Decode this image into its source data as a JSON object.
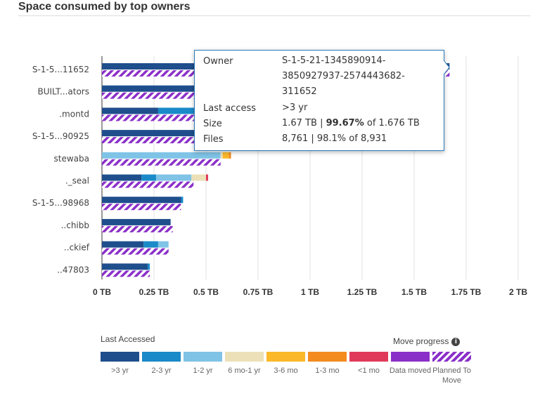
{
  "title": "Space consumed by top owners",
  "chart_data": {
    "type": "bar",
    "orientation": "horizontal",
    "x_ticks": [
      "0 TB",
      "0.25 TB",
      "0.5 TB",
      "0.75 TB",
      "1 TB",
      "1.25 TB",
      "1.5 TB",
      "1.75 TB",
      "2 TB"
    ],
    "xlim": [
      0,
      2
    ],
    "x_unit": "TB",
    "grid": true,
    "owners": [
      {
        "label": "S-1-5...11652",
        "segments": [
          1.67,
          0,
          0,
          0,
          0,
          0,
          0
        ],
        "planned": 1.67
      },
      {
        "label": "BUILT...ators",
        "segments": [
          0.66,
          0,
          0,
          0,
          0,
          0,
          0
        ],
        "planned": 0.66
      },
      {
        "label": ".montd",
        "segments": [
          0.27,
          0.38,
          0,
          0,
          0,
          0,
          0
        ],
        "planned": 0.65
      },
      {
        "label": "S-1-5...90925",
        "segments": [
          0.5,
          0,
          0,
          0,
          0,
          0,
          0
        ],
        "planned": 0.5
      },
      {
        "label": "stewaba",
        "segments": [
          0,
          0,
          0.57,
          0.01,
          0.03,
          0.01,
          0
        ],
        "planned": 0.57
      },
      {
        "label": "._seal",
        "segments": [
          0.19,
          0.07,
          0.17,
          0.07,
          0,
          0,
          0.01
        ],
        "planned": 0.44
      },
      {
        "label": "S-1-5...98968",
        "segments": [
          0.38,
          0.01,
          0,
          0,
          0,
          0,
          0
        ],
        "planned": 0.38
      },
      {
        "label": "..chibb",
        "segments": [
          0.33,
          0,
          0,
          0,
          0,
          0,
          0
        ],
        "planned": 0.34
      },
      {
        "label": "..ckief",
        "segments": [
          0.2,
          0.07,
          0.05,
          0,
          0,
          0,
          0
        ],
        "planned": 0.32
      },
      {
        "label": "..47803",
        "segments": [
          0.22,
          0.01,
          0,
          0,
          0,
          0,
          0
        ],
        "planned": 0.23
      }
    ],
    "legend": {
      "title": "Last Accessed",
      "items": [
        {
          "name": ">3 yr",
          "color": "#1f4e8c"
        },
        {
          "name": "2-3 yr",
          "color": "#1a8ac8"
        },
        {
          "name": "1-2 yr",
          "color": "#7fc3e6"
        },
        {
          "name": "6 mo-1 yr",
          "color": "#ece0b8"
        },
        {
          "name": "3-6 mo",
          "color": "#fbb829"
        },
        {
          "name": "1-3 mo",
          "color": "#f48b1f"
        },
        {
          "name": "<1 mo",
          "color": "#e03a5a"
        }
      ],
      "move_title": "Move progress",
      "move_items": [
        {
          "name": "Data moved",
          "color": "#8b2fc9",
          "style": "solid"
        },
        {
          "name": "Planned To Move",
          "color": "#8b2fc9",
          "style": "hatched"
        }
      ]
    }
  },
  "tooltip": {
    "owner_label": "Owner",
    "owner_lines": [
      "S-1-5-21-1345890914-",
      "3850927937-2574443682-",
      "311652"
    ],
    "last_access_label": "Last access",
    "last_access_value": ">3 yr",
    "size_label": "Size",
    "size_value_a": "1.67 TB | ",
    "size_value_bold": "99.67%",
    "size_value_b": " of 1.676 TB",
    "files_label": "Files",
    "files_value": "8,761 | 98.1% of 8,931"
  },
  "icons": {
    "info": "info-icon"
  }
}
